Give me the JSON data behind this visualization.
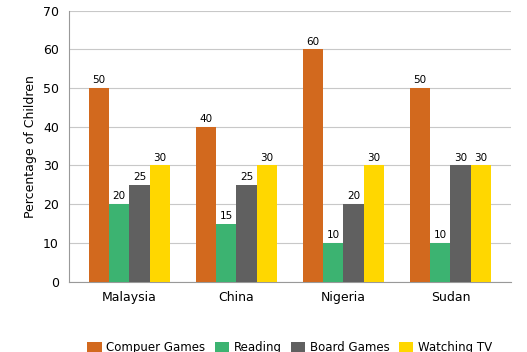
{
  "categories": [
    "Malaysia",
    "China",
    "Nigeria",
    "Sudan"
  ],
  "series": [
    {
      "label": "Compuer Games",
      "color": "#D2691E",
      "values": [
        50,
        40,
        60,
        50
      ]
    },
    {
      "label": "Reading",
      "color": "#3CB371",
      "values": [
        20,
        15,
        10,
        10
      ]
    },
    {
      "label": "Board Games",
      "color": "#606060",
      "values": [
        25,
        25,
        20,
        30
      ]
    },
    {
      "label": "Watching TV",
      "color": "#FFD700",
      "values": [
        30,
        30,
        30,
        30
      ]
    }
  ],
  "ylabel": "Percentage of Children",
  "ylim": [
    0,
    70
  ],
  "yticks": [
    0,
    10,
    20,
    30,
    40,
    50,
    60,
    70
  ],
  "bar_width": 0.19,
  "background_color": "#ffffff",
  "grid_color": "#c8c8c8",
  "value_fontsize": 7.5,
  "axis_fontsize": 9,
  "legend_fontsize": 8.5
}
